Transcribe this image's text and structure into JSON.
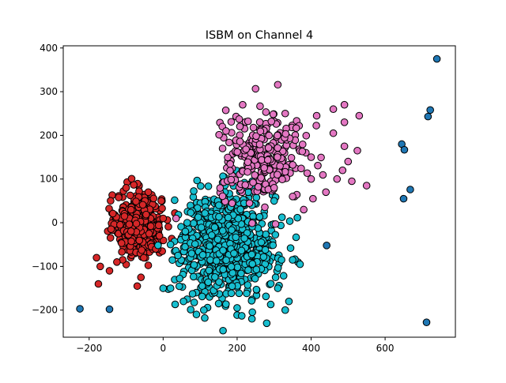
{
  "chart_data": {
    "type": "scatter",
    "title": "ISBM on Channel 4",
    "xlabel": "",
    "ylabel": "",
    "xlim": [
      -270,
      790
    ],
    "ylim": [
      -262,
      405
    ],
    "xticks": [
      -200,
      0,
      200,
      400,
      600
    ],
    "yticks": [
      -200,
      -100,
      0,
      100,
      200,
      300,
      400
    ],
    "grid": false,
    "legend": null,
    "series": [
      {
        "color": "#d62728",
        "description": "dense cluster near origin",
        "center": [
          -65,
          -5
        ],
        "spread": [
          30,
          35
        ],
        "count": 520,
        "extra_points": [
          [
            -175,
            -140
          ],
          [
            -145,
            -110
          ],
          [
            -170,
            -100
          ],
          [
            -180,
            -80
          ],
          [
            -125,
            -90
          ],
          [
            -70,
            -145
          ],
          [
            -60,
            -125
          ],
          [
            -20,
            -60
          ],
          [
            -10,
            -30
          ],
          [
            0,
            10
          ],
          [
            -5,
            50
          ],
          [
            -100,
            80
          ],
          [
            -40,
            70
          ]
        ]
      },
      {
        "color": "#17becf",
        "description": "large cluster centered right of origin",
        "center": [
          175,
          -50
        ],
        "spread": [
          65,
          60
        ],
        "count": 700,
        "extra_points": [
          [
            90,
            -210
          ],
          [
            110,
            -200
          ],
          [
            150,
            -185
          ],
          [
            200,
            -195
          ],
          [
            240,
            -220
          ],
          [
            280,
            -230
          ],
          [
            330,
            -200
          ],
          [
            340,
            -180
          ],
          [
            310,
            -150
          ],
          [
            320,
            -85
          ],
          [
            350,
            -85
          ],
          [
            370,
            -95
          ],
          [
            65,
            -175
          ],
          [
            55,
            -180
          ],
          [
            0,
            -150
          ],
          [
            20,
            -150
          ],
          [
            40,
            -75
          ],
          [
            20,
            -50
          ],
          [
            280,
            80
          ],
          [
            300,
            50
          ],
          [
            240,
            40
          ],
          [
            230,
            70
          ],
          [
            60,
            -20
          ],
          [
            65,
            0
          ]
        ]
      },
      {
        "color": "#e377c2",
        "description": "upper cluster",
        "center": [
          270,
          150
        ],
        "spread": [
          60,
          50
        ],
        "count": 260,
        "extra_points": [
          [
            215,
            270
          ],
          [
            330,
            250
          ],
          [
            490,
            270
          ],
          [
            460,
            260
          ],
          [
            530,
            245
          ],
          [
            490,
            230
          ],
          [
            415,
            245
          ],
          [
            460,
            205
          ],
          [
            490,
            175
          ],
          [
            525,
            165
          ],
          [
            500,
            140
          ],
          [
            485,
            120
          ],
          [
            470,
            100
          ],
          [
            510,
            95
          ],
          [
            550,
            85
          ],
          [
            440,
            70
          ],
          [
            400,
            100
          ],
          [
            405,
            55
          ],
          [
            380,
            30
          ],
          [
            350,
            60
          ],
          [
            300,
            80
          ],
          [
            160,
            220
          ],
          [
            170,
            210
          ],
          [
            400,
            150
          ]
        ]
      },
      {
        "color": "#1f77b4",
        "description": "sparse outliers",
        "points": [
          [
            740,
            375
          ],
          [
            722,
            258
          ],
          [
            716,
            243
          ],
          [
            645,
            180
          ],
          [
            652,
            167
          ],
          [
            668,
            76
          ],
          [
            650,
            55
          ],
          [
            442,
            -52
          ],
          [
            -225,
            -197
          ],
          [
            -145,
            -198
          ],
          [
            712,
            -228
          ]
        ]
      }
    ]
  }
}
